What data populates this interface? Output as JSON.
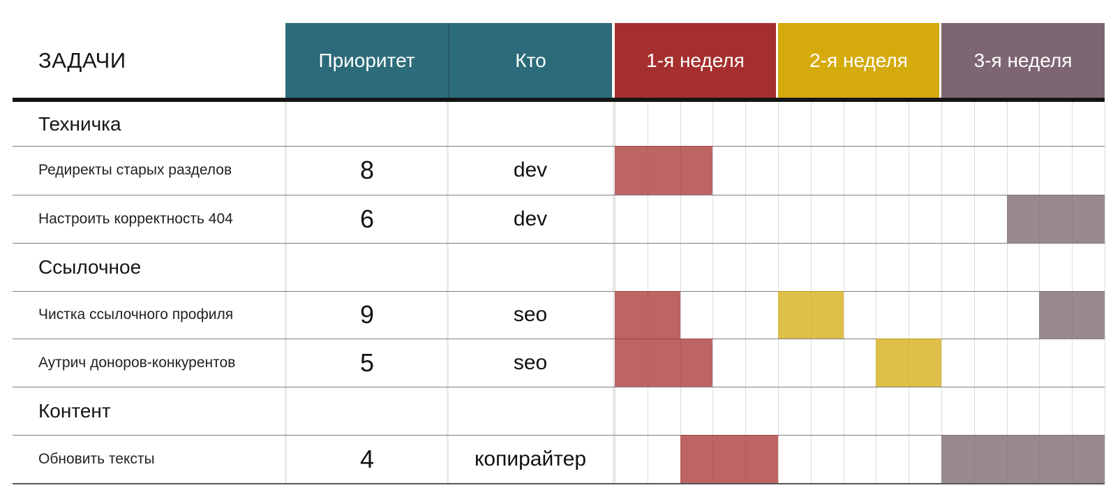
{
  "header": {
    "tasks_label": "ЗАДАЧИ",
    "columns": [
      {
        "id": "priority",
        "label": "Приоритет"
      },
      {
        "id": "who",
        "label": "Кто"
      },
      {
        "id": "week1",
        "label": "1-я неделя"
      },
      {
        "id": "week2",
        "label": "2-я неделя"
      },
      {
        "id": "week3",
        "label": "3-я неделя"
      }
    ]
  },
  "colors": {
    "header_teal": "#2c6b79",
    "header_week1_red": "#a42f2d",
    "header_week2_yellow": "#d4aa0c",
    "header_week3_purple": "#7d6672",
    "bar_week1": "rgba(164,47,45,0.74)",
    "bar_week2": "rgba(211,169,11,0.74)",
    "bar_week3": "rgba(125,102,114,0.78)",
    "grid_day_line": "#dcdcdc",
    "row_line": "#7d7d7d",
    "header_rule": "#151515"
  },
  "chart_data": {
    "type": "table",
    "subtype": "gantt",
    "title": "ЗАДАЧИ",
    "weeks": 3,
    "days_per_week": 5,
    "week_labels": [
      "1-я неделя",
      "2-я неделя",
      "3-я неделя"
    ],
    "rows": [
      {
        "type": "section",
        "label": "Техничка",
        "priority": "",
        "who": "",
        "bars": []
      },
      {
        "type": "task",
        "label": "Редиректы старых разделов",
        "priority": "8",
        "who": "dev",
        "bars": [
          {
            "week": 1,
            "day_start": 1,
            "day_end": 3
          }
        ]
      },
      {
        "type": "task",
        "label": "Настроить корректность 404",
        "priority": "6",
        "who": "dev",
        "bars": [
          {
            "week": 3,
            "day_start": 3,
            "day_end": 5
          }
        ]
      },
      {
        "type": "section",
        "label": "Ссылочное",
        "priority": "",
        "who": "",
        "bars": []
      },
      {
        "type": "task",
        "label": "Чистка ссылочного профиля",
        "priority": "9",
        "who": "seo",
        "bars": [
          {
            "week": 1,
            "day_start": 1,
            "day_end": 2
          },
          {
            "week": 2,
            "day_start": 1,
            "day_end": 2
          },
          {
            "week": 3,
            "day_start": 4,
            "day_end": 5
          }
        ]
      },
      {
        "type": "task",
        "label": "Аутрич доноров-конкурентов",
        "priority": "5",
        "who": "seo",
        "bars": [
          {
            "week": 1,
            "day_start": 1,
            "day_end": 3
          },
          {
            "week": 2,
            "day_start": 4,
            "day_end": 5
          }
        ]
      },
      {
        "type": "section",
        "label": "Контент",
        "priority": "",
        "who": "",
        "bars": []
      },
      {
        "type": "task",
        "label": "Обновить тексты",
        "priority": "4",
        "who": "копирайтер",
        "bars": [
          {
            "week": 1,
            "day_start": 3,
            "day_end": 5
          },
          {
            "week": 3,
            "day_start": 1,
            "day_end": 5
          }
        ]
      }
    ]
  }
}
